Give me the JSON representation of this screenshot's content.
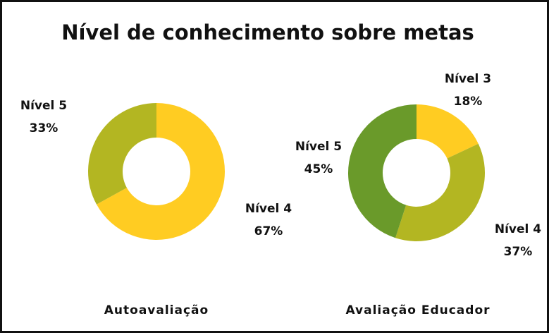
{
  "title": "Nível de conhecimento sobre metas",
  "chart_data": [
    {
      "type": "donut",
      "title": "Autoavaliação",
      "categories": [
        "Nível 4",
        "Nível 5"
      ],
      "values": [
        67,
        33
      ],
      "value_labels": [
        "67%",
        "33%"
      ],
      "colors": [
        "#FFCC22",
        "#B3B622"
      ]
    },
    {
      "type": "donut",
      "title": "Avaliação Educador",
      "categories": [
        "Nível 3",
        "Nível 4",
        "Nível 5"
      ],
      "values": [
        18,
        37,
        45
      ],
      "value_labels": [
        "18%",
        "37%",
        "45%"
      ],
      "colors": [
        "#FFCC22",
        "#B3B622",
        "#6A9A2A"
      ]
    }
  ]
}
